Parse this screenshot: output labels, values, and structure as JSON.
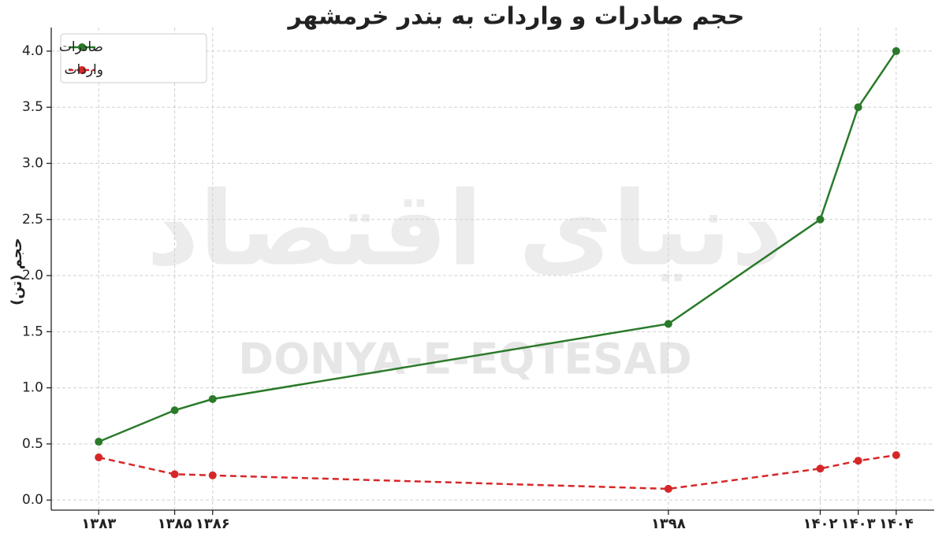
{
  "chart_data": {
    "type": "line",
    "title": "حجم صادرات و واردات به بندر خرمشهر",
    "y_label": "حجم (تن)",
    "watermark": "DONYA-E-EQTESAD",
    "watermark_logo": "دنیای اقتصاد",
    "x": [
      1383,
      1385,
      1386,
      1398,
      1402,
      1403,
      1404
    ],
    "series": [
      {
        "name": "صادرات",
        "color": "#2a7a2a",
        "dashed": false,
        "values": [
          0.52,
          0.8,
          0.9,
          1.57,
          2.5,
          3.5,
          4.0
        ]
      },
      {
        "name": "واردات",
        "color": "#d62728",
        "dashed": true,
        "values": [
          0.38,
          0.23,
          0.22,
          0.1,
          0.28,
          0.35,
          0.4
        ]
      }
    ],
    "xlim": [
      1381.75,
      1405
    ],
    "xticks": [
      {
        "value": 1383,
        "label": "۱۳۸۳"
      },
      {
        "value": 1385,
        "label": "۱۳۸۵"
      },
      {
        "value": 1386,
        "label": "۱۳۸۶"
      },
      {
        "value": 1398,
        "label": "۱۳۹۸"
      },
      {
        "value": 1402,
        "label": "۱۴۰۲"
      },
      {
        "value": 1403,
        "label": "۱۴۰۳"
      },
      {
        "value": 1404,
        "label": "۱۴۰۴"
      }
    ],
    "ylim": [
      -0.09,
      4.21
    ],
    "yticks": [
      {
        "value": 0,
        "label": "0.0"
      },
      {
        "value": 0.5,
        "label": "0.5"
      },
      {
        "value": 1,
        "label": "1.0"
      },
      {
        "value": 1.5,
        "label": "1.5"
      },
      {
        "value": 2,
        "label": "2.0"
      },
      {
        "value": 2.5,
        "label": "2.5"
      },
      {
        "value": 3,
        "label": "3.0"
      },
      {
        "value": 3.5,
        "label": "3.5"
      },
      {
        "value": 4,
        "label": "4.0"
      }
    ],
    "grid": true,
    "legend": "upper-left"
  }
}
